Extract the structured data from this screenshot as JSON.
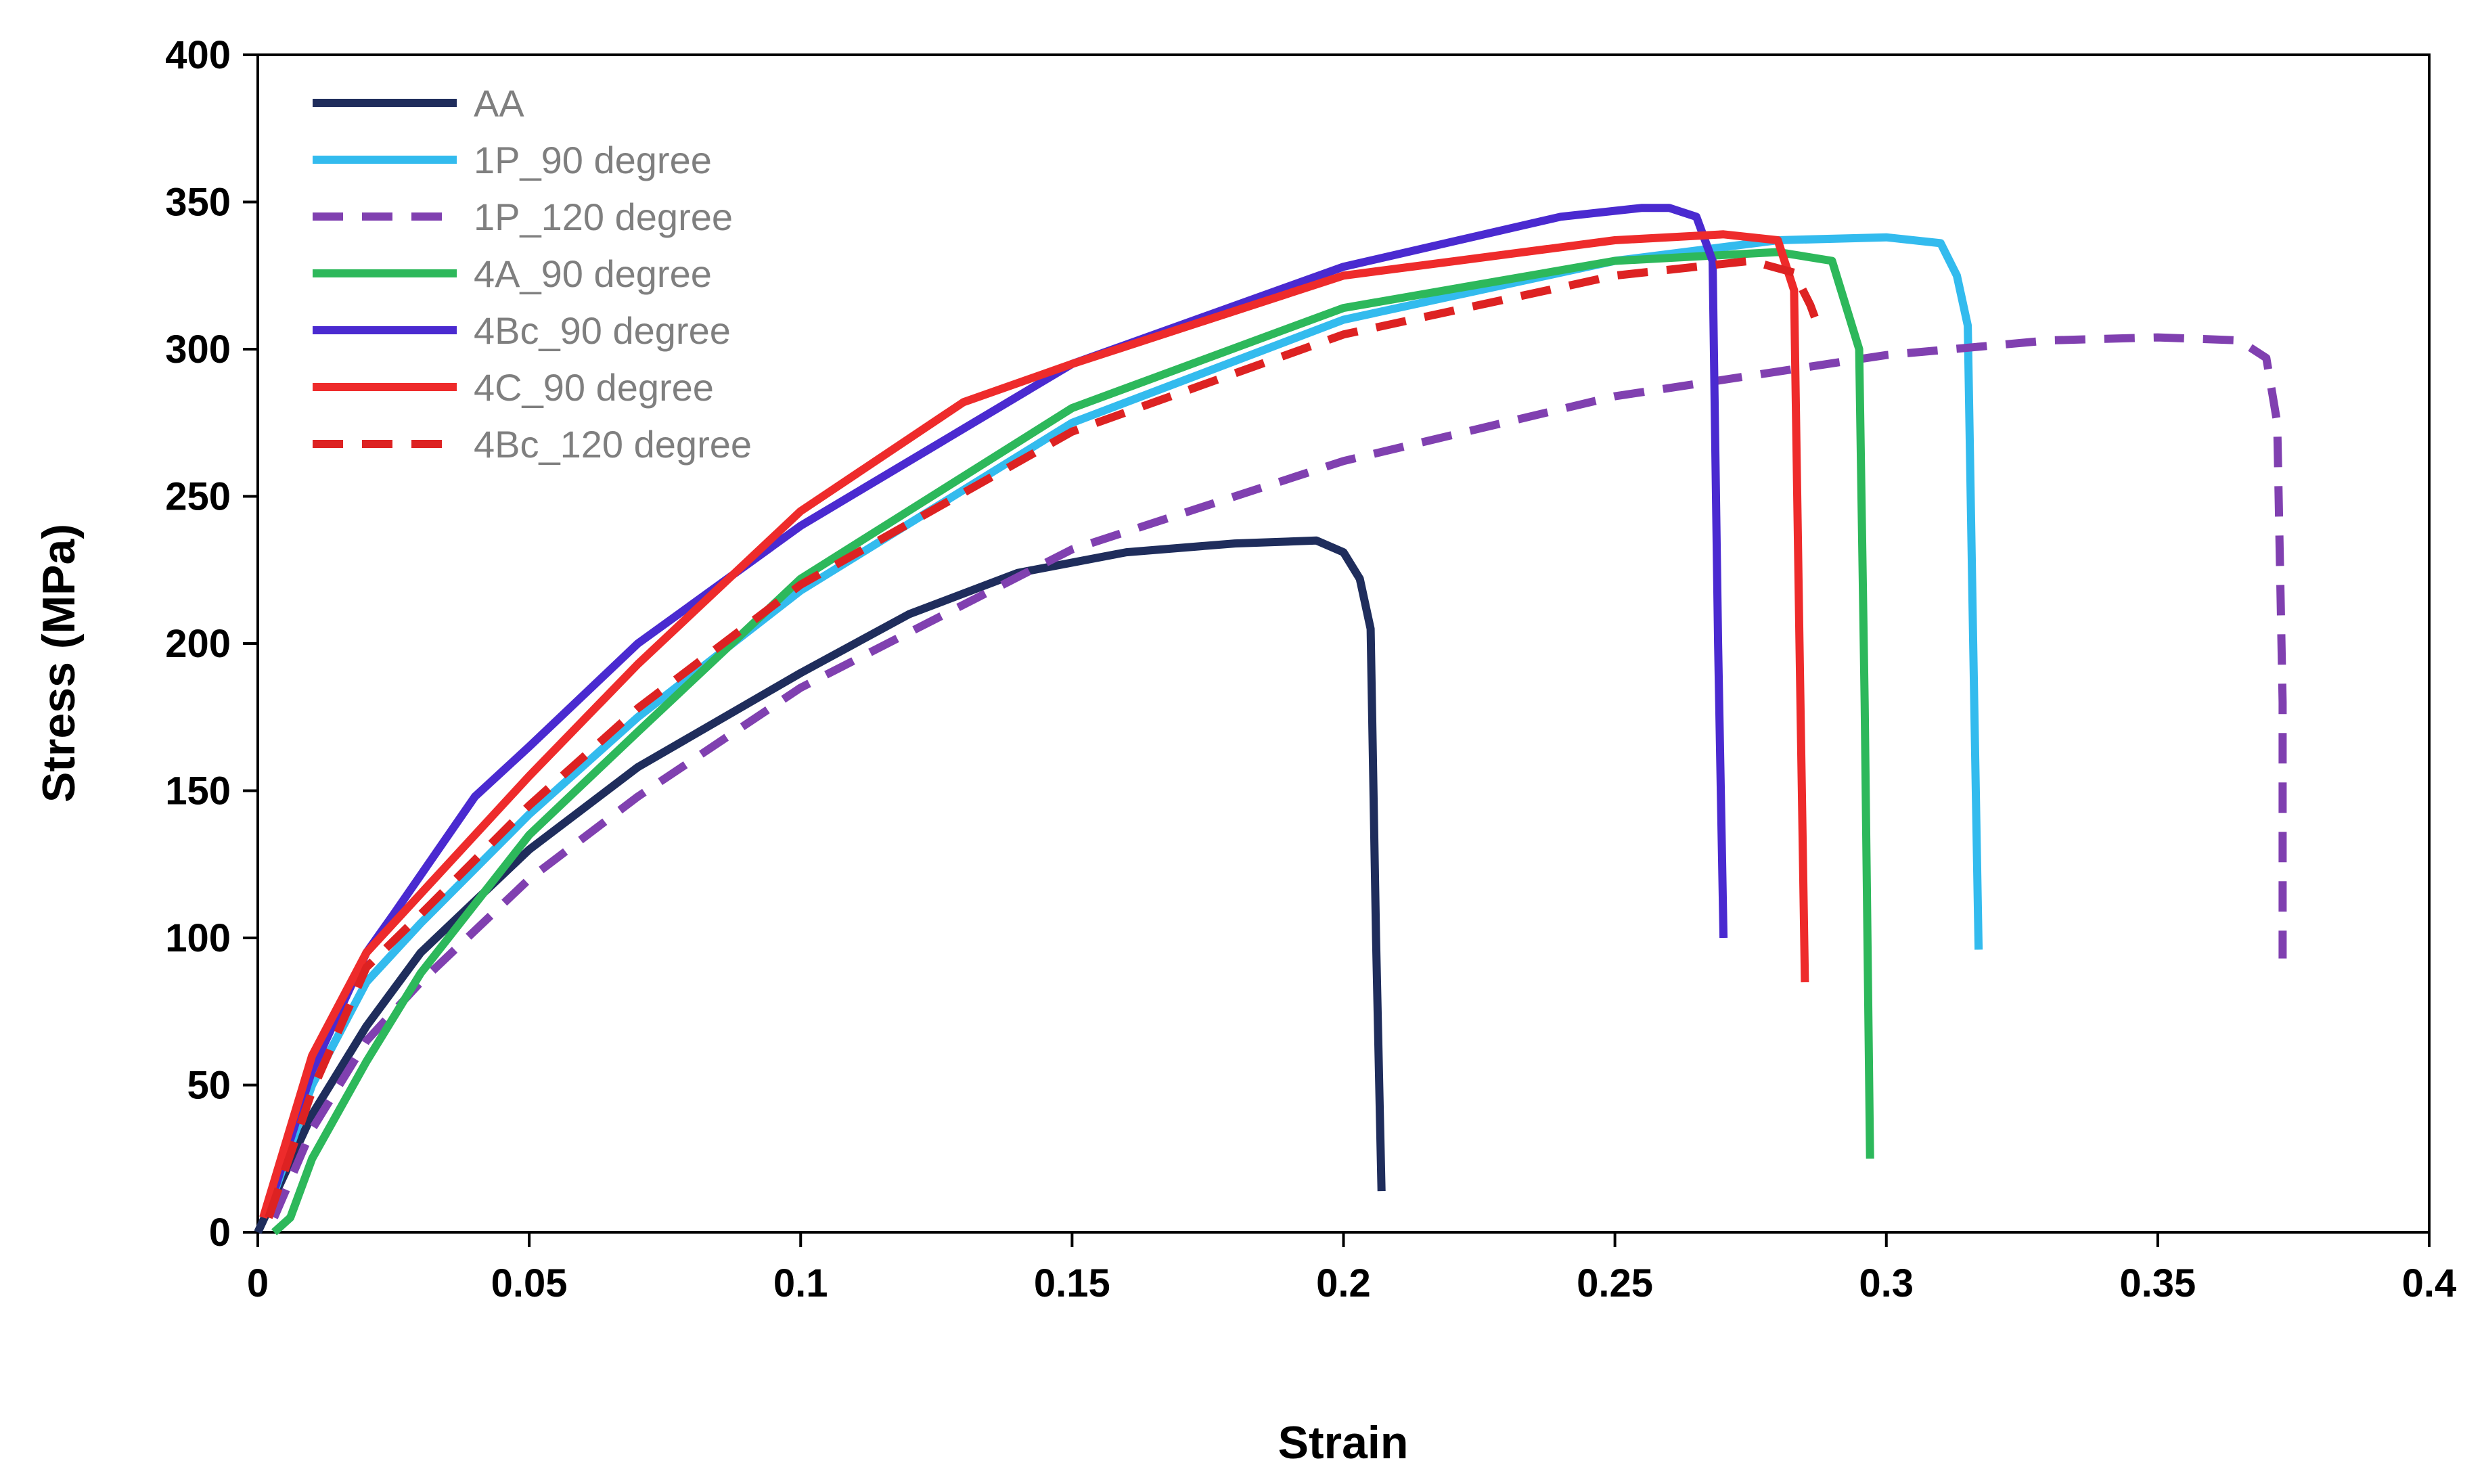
{
  "chart_data": {
    "type": "line",
    "title": "",
    "xlabel": "Strain",
    "ylabel": "Stress (MPa)",
    "xlim": [
      0,
      0.4
    ],
    "ylim": [
      0,
      400
    ],
    "xticks": [
      0,
      0.05,
      0.1,
      0.15,
      0.2,
      0.25,
      0.3,
      0.35,
      0.4
    ],
    "xtick_labels": [
      "0",
      "0.05",
      "0.1",
      "0.15",
      "0.2",
      "0.25",
      "0.3",
      "0.35",
      "0.4"
    ],
    "yticks": [
      0,
      50,
      100,
      150,
      200,
      250,
      300,
      350,
      400
    ],
    "ytick_labels": [
      "0",
      "50",
      "100",
      "150",
      "200",
      "250",
      "300",
      "350",
      "400"
    ],
    "grid": false,
    "legend_position": "top-left",
    "series": [
      {
        "name": "AA",
        "color": "#1f2d5c",
        "dash": "solid",
        "x": [
          0,
          0.005,
          0.01,
          0.02,
          0.03,
          0.05,
          0.07,
          0.1,
          0.12,
          0.14,
          0.16,
          0.18,
          0.195,
          0.2,
          0.203,
          0.205,
          0.206,
          0.207
        ],
        "y": [
          0,
          20,
          40,
          70,
          95,
          130,
          158,
          190,
          210,
          224,
          231,
          234,
          235,
          231,
          222,
          205,
          100,
          14
        ]
      },
      {
        "name": "1P_90 degree",
        "color": "#33bbee",
        "dash": "solid",
        "x": [
          0.002,
          0.01,
          0.02,
          0.03,
          0.05,
          0.07,
          0.1,
          0.15,
          0.2,
          0.25,
          0.28,
          0.3,
          0.31,
          0.313,
          0.315,
          0.316,
          0.317
        ],
        "y": [
          8,
          50,
          85,
          105,
          142,
          175,
          218,
          275,
          310,
          330,
          337,
          338,
          336,
          325,
          308,
          200,
          96
        ]
      },
      {
        "name": "1P_120 degree",
        "color": "#8040b0",
        "dash": "dashed",
        "x": [
          0.003,
          0.01,
          0.02,
          0.03,
          0.05,
          0.07,
          0.1,
          0.15,
          0.2,
          0.25,
          0.3,
          0.33,
          0.35,
          0.365,
          0.37,
          0.372,
          0.373,
          0.373
        ],
        "y": [
          5,
          35,
          65,
          85,
          120,
          148,
          185,
          232,
          262,
          284,
          298,
          303,
          304,
          303,
          297,
          275,
          180,
          93
        ]
      },
      {
        "name": "4A_90 degree",
        "color": "#2db85b",
        "dash": "solid",
        "x": [
          0.003,
          0.006,
          0.01,
          0.02,
          0.03,
          0.05,
          0.07,
          0.1,
          0.15,
          0.2,
          0.25,
          0.28,
          0.29,
          0.295,
          0.296,
          0.297
        ],
        "y": [
          0,
          5,
          25,
          58,
          88,
          135,
          170,
          222,
          280,
          314,
          330,
          333,
          330,
          300,
          180,
          25
        ]
      },
      {
        "name": "4Bc_90 degree",
        "color": "#4a2ad0",
        "dash": "solid",
        "x": [
          0.002,
          0.01,
          0.02,
          0.025,
          0.04,
          0.05,
          0.07,
          0.1,
          0.15,
          0.2,
          0.24,
          0.255,
          0.26,
          0.265,
          0.268,
          0.269,
          0.27
        ],
        "y": [
          8,
          55,
          95,
          108,
          148,
          165,
          200,
          240,
          295,
          328,
          345,
          348,
          348,
          345,
          330,
          200,
          100
        ]
      },
      {
        "name": "4C_90 degree",
        "color": "#ee2b2b",
        "dash": "solid",
        "x": [
          0.001,
          0.01,
          0.02,
          0.03,
          0.05,
          0.07,
          0.1,
          0.13,
          0.15,
          0.2,
          0.25,
          0.27,
          0.28,
          0.283,
          0.284,
          0.285
        ],
        "y": [
          5,
          60,
          95,
          115,
          155,
          193,
          245,
          282,
          295,
          325,
          337,
          339,
          337,
          320,
          200,
          85
        ]
      },
      {
        "name": "4Bc_120 degree",
        "color": "#dd2222",
        "dash": "dashed",
        "x": [
          0.002,
          0.01,
          0.02,
          0.03,
          0.05,
          0.07,
          0.1,
          0.15,
          0.2,
          0.25,
          0.275,
          0.283,
          0.286,
          0.288
        ],
        "y": [
          5,
          48,
          90,
          108,
          145,
          178,
          220,
          272,
          305,
          325,
          330,
          326,
          315,
          305
        ]
      }
    ]
  }
}
